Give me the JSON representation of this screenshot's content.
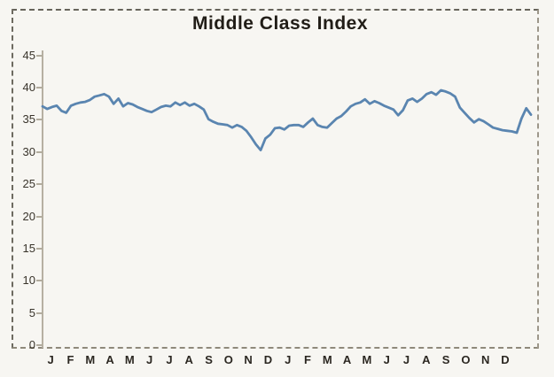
{
  "page": {
    "background_color": "#f7f6f2",
    "kind": "scanned line chart, no interactive controls"
  },
  "chart": {
    "title": "Middle Class Index",
    "line_color": "#5a85b0",
    "axis_color": "#b6b0a2",
    "tick_text_color": "#39342b",
    "title_color": "#211d17",
    "border_dark_color": "#67645b",
    "border_light_color": "#9d978a"
  },
  "chart_data": {
    "type": "line",
    "title": "Middle Class Index",
    "ylim": [
      0,
      45
    ],
    "y_ticks": [
      0,
      5,
      10,
      15,
      20,
      25,
      30,
      35,
      40,
      45
    ],
    "x_tick_labels": [
      "J",
      "F",
      "M",
      "A",
      "M",
      "J",
      "J",
      "A",
      "S",
      "O",
      "N",
      "D",
      "J",
      "F",
      "M",
      "A",
      "M",
      "J",
      "J",
      "A",
      "S",
      "O",
      "N",
      "D"
    ],
    "x_layout_note": "24 monthly labels spanning two consecutive years; series is sampled weekly (104 points) evenly across the axis",
    "grid": false,
    "legend": false,
    "series": [
      {
        "name": "Middle Class Index",
        "values": [
          37.1,
          36.7,
          37.0,
          37.2,
          36.4,
          36.1,
          37.2,
          37.5,
          37.7,
          37.8,
          38.1,
          38.6,
          38.8,
          39.0,
          38.6,
          37.5,
          38.3,
          37.1,
          37.6,
          37.4,
          37.0,
          36.7,
          36.4,
          36.2,
          36.6,
          37.0,
          37.2,
          37.1,
          37.7,
          37.3,
          37.7,
          37.2,
          37.5,
          37.1,
          36.6,
          35.1,
          34.7,
          34.4,
          34.3,
          34.2,
          33.8,
          34.2,
          33.9,
          33.3,
          32.3,
          31.2,
          30.3,
          32.1,
          32.7,
          33.7,
          33.8,
          33.5,
          34.1,
          34.2,
          34.2,
          33.9,
          34.6,
          35.2,
          34.2,
          33.9,
          33.8,
          34.5,
          35.2,
          35.6,
          36.3,
          37.1,
          37.5,
          37.7,
          38.2,
          37.5,
          37.9,
          37.6,
          37.2,
          36.9,
          36.6,
          35.7,
          36.5,
          38.0,
          38.3,
          37.8,
          38.3,
          39.0,
          39.3,
          38.9,
          39.6,
          39.4,
          39.1,
          38.6,
          36.9,
          36.1,
          35.3,
          34.6,
          35.1,
          34.8,
          34.3,
          33.8,
          33.6,
          33.4,
          33.3,
          33.2,
          33.0,
          35.2,
          36.8,
          35.8
        ]
      }
    ]
  }
}
